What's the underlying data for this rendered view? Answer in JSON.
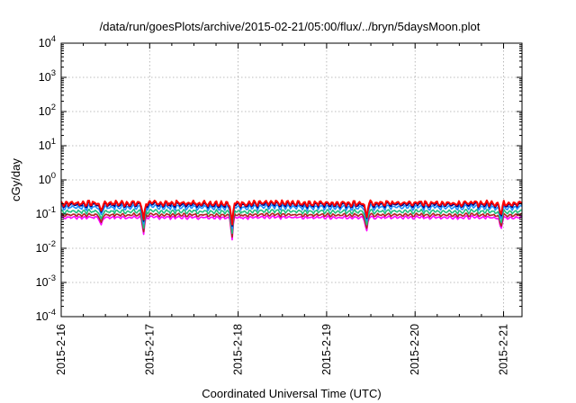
{
  "chart_data": {
    "type": "line",
    "title": "/data/run/goesPlots/archive/2015-02-21/05:00/flux/../bryn/5daysMoon.plot",
    "xlabel": "Coordinated Universal Time (UTC)",
    "ylabel": "cGy/day",
    "yscale": "log",
    "ylim": [
      0.0001,
      10000
    ],
    "xlim": [
      "2015-02-16 00:00",
      "2015-02-21 05:00"
    ],
    "grid": true,
    "x_ticks": [
      {
        "value": 0,
        "label": "2015-2-16"
      },
      {
        "value": 1,
        "label": "2015-2-17"
      },
      {
        "value": 2,
        "label": "2015-2-18"
      },
      {
        "value": 3,
        "label": "2015-2-19"
      },
      {
        "value": 4,
        "label": "2015-2-20"
      },
      {
        "value": 5,
        "label": "2015-2-21"
      }
    ],
    "y_ticks": [
      {
        "value": 0.0001,
        "base": "10",
        "exp": "-4"
      },
      {
        "value": 0.001,
        "base": "10",
        "exp": "-3"
      },
      {
        "value": 0.01,
        "base": "10",
        "exp": "-2"
      },
      {
        "value": 0.1,
        "base": "10",
        "exp": "-1"
      },
      {
        "value": 1,
        "base": "10",
        "exp": "0"
      },
      {
        "value": 10,
        "base": "10",
        "exp": "1"
      },
      {
        "value": 100,
        "base": "10",
        "exp": "2"
      },
      {
        "value": 1000,
        "base": "10",
        "exp": "3"
      },
      {
        "value": 10000,
        "base": "10",
        "exp": "4"
      }
    ],
    "series": [
      {
        "color": "#ff0000",
        "baseline": 0.21,
        "amp": 0.09
      },
      {
        "color": "#000080",
        "baseline": 0.19,
        "amp": 0.08
      },
      {
        "color": "#1e90ff",
        "baseline": 0.16,
        "amp": 0.07
      },
      {
        "color": "#20c080",
        "baseline": 0.12,
        "amp": 0.04
      },
      {
        "color": "#b22222",
        "baseline": 0.095,
        "amp": 0.025
      },
      {
        "color": "#ff00ff",
        "baseline": 0.08,
        "amp": 0.02
      }
    ],
    "dips": [
      {
        "x": 0.45,
        "value": 0.045
      },
      {
        "x": 0.93,
        "value": 0.022
      },
      {
        "x": 1.93,
        "value": 0.012
      },
      {
        "x": 3.45,
        "value": 0.024
      },
      {
        "x": 4.97,
        "value": 0.03
      }
    ]
  }
}
